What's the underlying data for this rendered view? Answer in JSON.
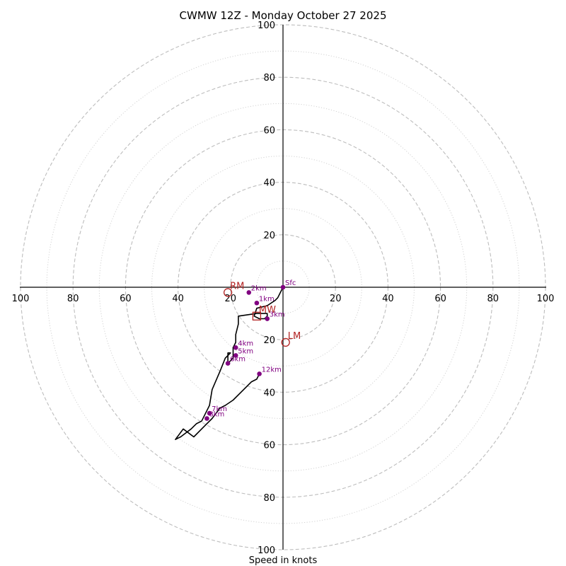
{
  "chart_data": {
    "type": "scatter",
    "title": "CWMW 12Z - Monday October 27 2025",
    "xlabel": "Speed in knots",
    "ylabel": "",
    "xlim": [
      -100,
      100
    ],
    "ylim": [
      -100,
      100
    ],
    "ring_major_step": 20,
    "ring_minor_step": 10,
    "x_tick_labels": [
      "100",
      "80",
      "60",
      "40",
      "20",
      "20",
      "40",
      "60",
      "80",
      "100"
    ],
    "x_tick_values": [
      -100,
      -80,
      -60,
      -40,
      -20,
      20,
      40,
      60,
      80,
      100
    ],
    "y_tick_labels": [
      "100",
      "80",
      "60",
      "40",
      "20",
      "20",
      "40",
      "60",
      "80",
      "100"
    ],
    "y_tick_values": [
      100,
      80,
      60,
      40,
      20,
      -20,
      -40,
      -60,
      -80,
      -100
    ],
    "hodograph": {
      "u": [
        0,
        -1,
        -2,
        -3,
        -6,
        -10,
        -11,
        -9,
        -7,
        -6,
        -6,
        -10,
        -17,
        -17,
        -18,
        -18,
        -19,
        -19,
        -19,
        -21,
        -21,
        -20,
        -22,
        -24,
        -27,
        -28,
        -30,
        -31,
        -33,
        -35,
        -39,
        -41,
        -38,
        -34,
        -30,
        -27,
        -24,
        -22,
        -19,
        -16,
        -12,
        -10,
        -9
      ],
      "v": [
        0,
        -2,
        -4,
        -5,
        -7,
        -8,
        -11,
        -12,
        -12,
        -11,
        -10,
        -10,
        -11,
        -14,
        -18,
        -21,
        -23,
        -25,
        -27,
        -29,
        -25,
        -25,
        -27,
        -32,
        -39,
        -45,
        -49,
        -51,
        -52,
        -54,
        -57,
        -58,
        -54,
        -57,
        -53,
        -50,
        -46,
        -45,
        -43,
        -40,
        -36,
        -35,
        -33
      ]
    },
    "altitude_points": [
      {
        "label": "Sfc",
        "u": 0,
        "v": 0
      },
      {
        "label": "1km",
        "u": -10,
        "v": -6
      },
      {
        "label": "2km",
        "u": -13,
        "v": -2
      },
      {
        "label": "3km",
        "u": -6,
        "v": -12
      },
      {
        "label": "4km",
        "u": -18,
        "v": -23
      },
      {
        "label": "5km",
        "u": -18,
        "v": -26
      },
      {
        "label": "6km",
        "u": -21,
        "v": -29
      },
      {
        "label": "7km",
        "u": -28,
        "v": -48
      },
      {
        "label": "8km",
        "u": -29,
        "v": -50
      },
      {
        "label": "12km",
        "u": -9,
        "v": -33
      }
    ],
    "storm_motion": [
      {
        "label": "RM",
        "u": -21,
        "v": -2,
        "marker": "circle"
      },
      {
        "label": "LM",
        "u": 1,
        "v": -21,
        "marker": "circle"
      },
      {
        "label": "MW",
        "u": -10,
        "v": -11,
        "marker": "square"
      }
    ],
    "colors": {
      "ring": "#bdbdbd",
      "hodograph": "#000000",
      "altitude": "#800080",
      "storm": "#b22222"
    }
  }
}
